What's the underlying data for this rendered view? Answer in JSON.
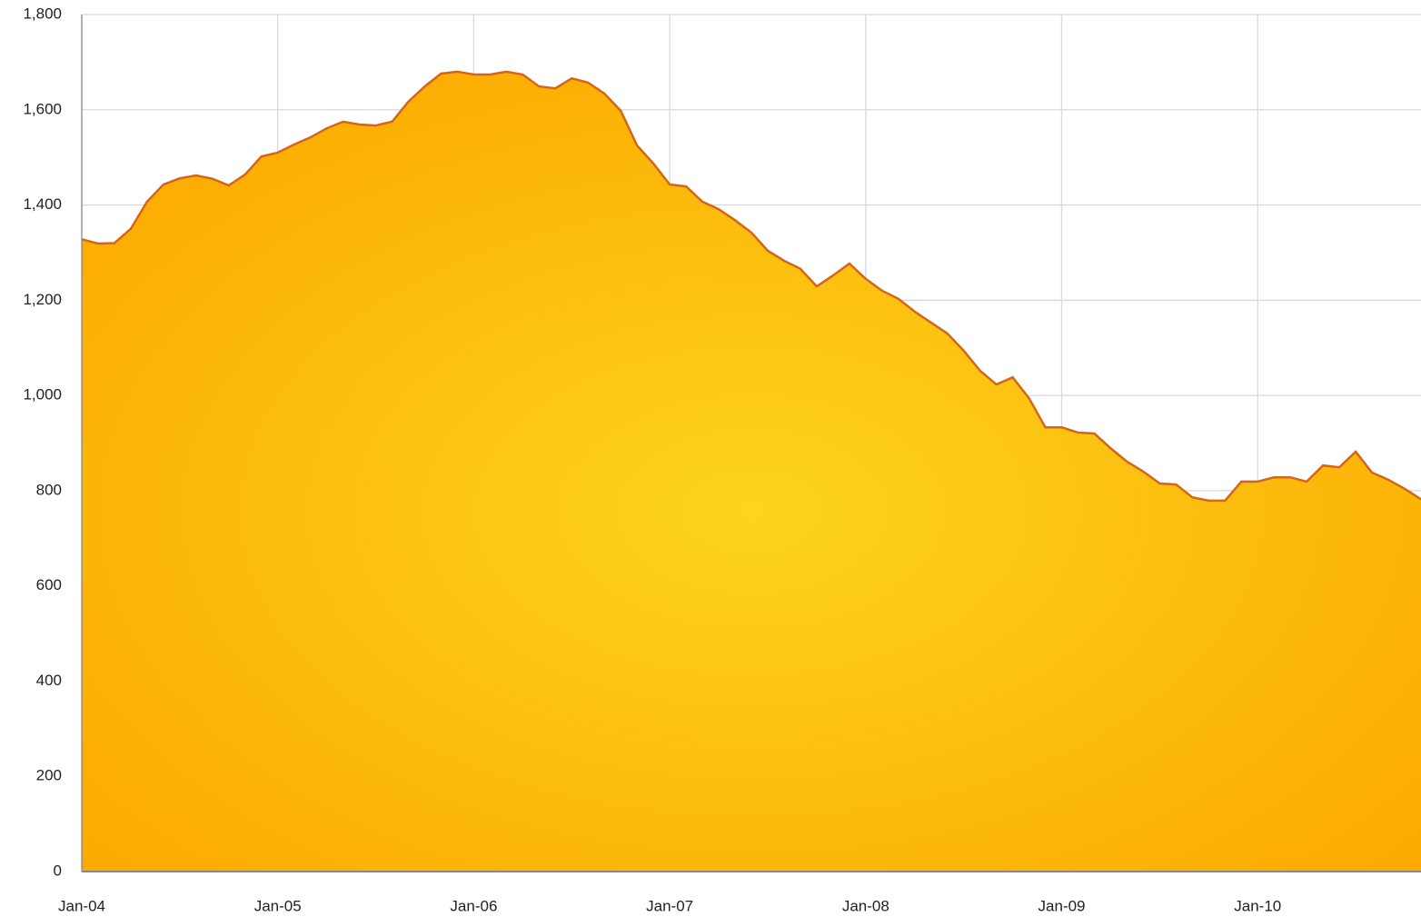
{
  "chart_data": {
    "type": "area",
    "categories": [
      "Jan-04",
      null,
      null,
      null,
      null,
      null,
      null,
      null,
      null,
      null,
      null,
      null,
      "Jan-05",
      null,
      null,
      null,
      null,
      null,
      null,
      null,
      null,
      null,
      null,
      null,
      "Jan-06",
      null,
      null,
      null,
      null,
      null,
      null,
      null,
      null,
      null,
      null,
      null,
      "Jan-07",
      null,
      null,
      null,
      null,
      null,
      null,
      null,
      null,
      null,
      null,
      null,
      "Jan-08",
      null,
      null,
      null,
      null,
      null,
      null,
      null,
      null,
      null,
      null,
      null,
      "Jan-09",
      null,
      null,
      null,
      null,
      null,
      null,
      null,
      null,
      null,
      null,
      null,
      "Jan-10",
      null,
      null,
      null,
      null,
      null,
      null,
      null,
      null,
      null,
      null
    ],
    "values": [
      1328,
      1319,
      1320,
      1350,
      1407,
      1443,
      1456,
      1462,
      1455,
      1441,
      1464,
      1502,
      1510,
      1527,
      1542,
      1561,
      1575,
      1569,
      1567,
      1575,
      1617,
      1649,
      1676,
      1680,
      1674,
      1674,
      1680,
      1674,
      1649,
      1645,
      1666,
      1657,
      1634,
      1598,
      1525,
      1487,
      1443,
      1439,
      1407,
      1391,
      1368,
      1342,
      1304,
      1283,
      1266,
      1229,
      1252,
      1277,
      1245,
      1220,
      1203,
      1176,
      1153,
      1130,
      1094,
      1052,
      1023,
      1038,
      994,
      933,
      933,
      922,
      920,
      889,
      861,
      840,
      815,
      813,
      786,
      779,
      779,
      819,
      819,
      828,
      828,
      819,
      853,
      849,
      882,
      838,
      823,
      804,
      782
    ],
    "color": "#fcc10f",
    "line_color": "#d4661a",
    "ylim": [
      0,
      1800
    ],
    "yticks": [
      0,
      200,
      400,
      600,
      800,
      {
        "value": 1000,
        "label": "1,000"
      },
      {
        "value": 1200,
        "label": "1,200"
      },
      {
        "value": 1400,
        "label": "1,400"
      },
      {
        "value": 1600,
        "label": "1,600"
      },
      {
        "value": 1800,
        "label": "1,800"
      }
    ],
    "grid": true
  }
}
